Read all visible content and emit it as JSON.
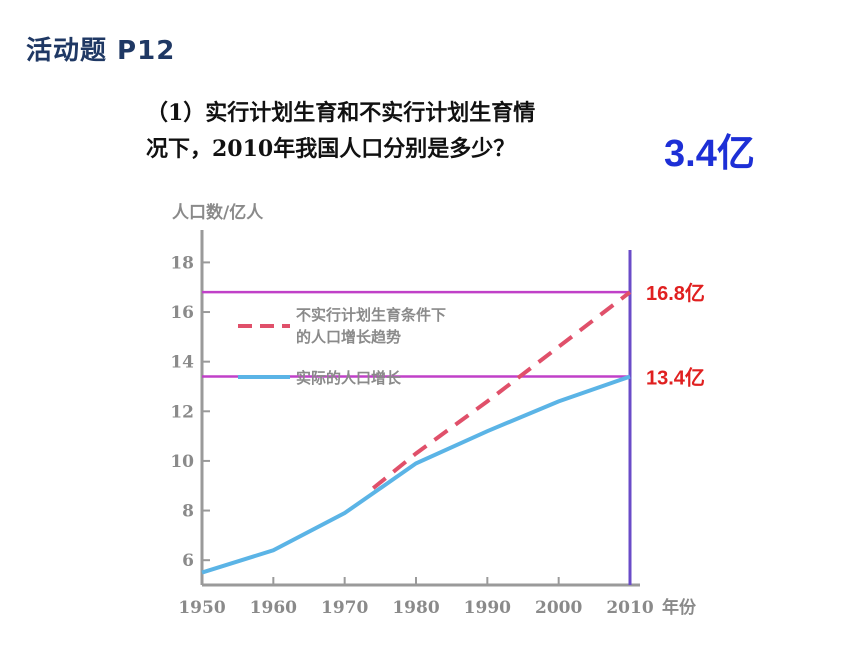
{
  "header": {
    "title": "活动题 P12"
  },
  "question": {
    "line1": "（1）实行计划生育和不实行计划生育情",
    "line2": "况下，2010年我国人口分别是多少？"
  },
  "answer": "3.4亿",
  "colors": {
    "actual": "#5bb4e6",
    "no_plan": "#e0506a",
    "reference_lines": "#c040c8",
    "year_line": "#6a4cc8",
    "labels": "#e02020",
    "answer": "#1d2fd6"
  },
  "chart_data": {
    "type": "line",
    "ylabel": "人口数/亿人",
    "xlabel": "年份",
    "x_ticks": [
      1950,
      1960,
      1970,
      1980,
      1990,
      2000,
      2010
    ],
    "y_ticks": [
      6,
      8,
      10,
      12,
      14,
      16,
      18
    ],
    "xlim": [
      1950,
      2010
    ],
    "ylim": [
      5,
      18.5
    ],
    "legend_position": "upper-left",
    "series": [
      {
        "name": "不实行计划生育条件下的人口增长趋势",
        "name_line1": "不实行计划生育条件下",
        "name_line2": "的人口增长趋势",
        "style": "dashed",
        "x": [
          1974,
          1980,
          1990,
          2000,
          2010
        ],
        "y": [
          8.9,
          10.3,
          12.4,
          14.6,
          16.8
        ]
      },
      {
        "name": "实际的人口增长",
        "style": "solid",
        "x": [
          1950,
          1960,
          1970,
          1980,
          1990,
          2000,
          2010
        ],
        "y": [
          5.5,
          6.4,
          7.9,
          9.9,
          11.2,
          12.4,
          13.4
        ]
      }
    ],
    "reference_lines": [
      {
        "y": 16.8,
        "label": "16.8亿"
      },
      {
        "y": 13.4,
        "label": "13.4亿"
      }
    ],
    "vertical_line_x": 2010
  }
}
